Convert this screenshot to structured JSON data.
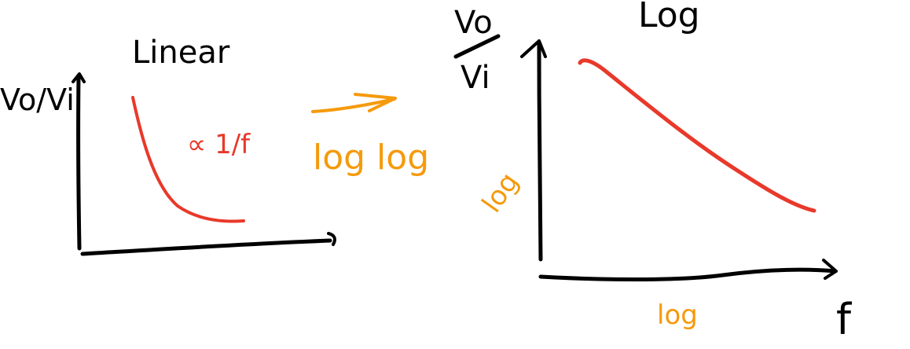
{
  "left_plot": {
    "title": "Linear",
    "y_label": "Vo/Vi",
    "curve_annotation": "∝ 1/f"
  },
  "transform": {
    "label": "log log"
  },
  "right_plot": {
    "title": "Log",
    "y_label_top": "Vo",
    "y_label_bottom": "Vi",
    "y_axis_scale": "log",
    "x_axis_scale": "log",
    "x_label": "f"
  },
  "colors": {
    "ink": "#000000",
    "curve": "#e8392a",
    "annotation": "#f59a0c"
  }
}
